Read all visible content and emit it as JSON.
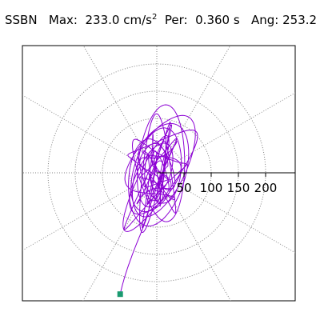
{
  "chart_data": {
    "type": "polar-orbit",
    "title": {
      "station": "SSBN",
      "max_label": "Max:",
      "max_value": "233.0",
      "max_unit": "cm/s",
      "max_unit_exp": "2",
      "period_label": "Per:",
      "period_value": "0.360 s",
      "angle_label": "Ang:",
      "angle_value": "253.2"
    },
    "radial_ticks": [
      "50",
      "100",
      "150",
      "200"
    ],
    "radial_tick_values": [
      50,
      100,
      150,
      200
    ],
    "radial_max": 300,
    "dominant_angle_deg": 253.2,
    "peak_value": 233.0,
    "orbit_color": "#8c00d4",
    "grid_color": "#808080",
    "marker_color": "#1a9a70",
    "grid": true
  }
}
